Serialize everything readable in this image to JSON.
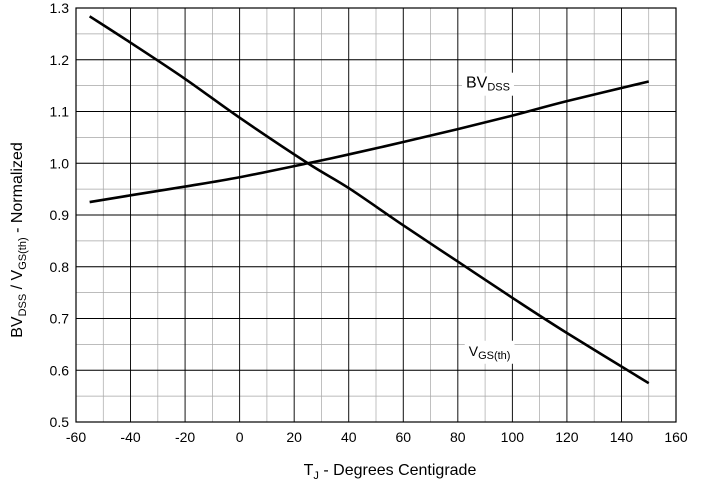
{
  "chart_data": {
    "type": "line",
    "title": "",
    "xlabel": {
      "main": "T",
      "sub": "J",
      "rest": " - Degrees Centigrade"
    },
    "ylabel": {
      "p1": "BV",
      "s1": "DSS",
      "p2": " / V",
      "s2": "GS(th)",
      "p3": " - Normalized"
    },
    "xlim": [
      -60,
      160
    ],
    "ylim": [
      0.5,
      1.3
    ],
    "x_ticks": [
      -60,
      -40,
      -20,
      0,
      20,
      40,
      60,
      80,
      100,
      120,
      140,
      160
    ],
    "y_ticks": [
      0.5,
      0.6,
      0.7,
      0.8,
      0.9,
      1.0,
      1.1,
      1.2,
      1.3
    ],
    "x_tick_labels": [
      "-60",
      "-40",
      "-20",
      "0",
      "20",
      "40",
      "60",
      "80",
      "100",
      "120",
      "140",
      "160"
    ],
    "y_tick_labels": [
      "0.5",
      "0.6",
      "0.7",
      "0.8",
      "0.9",
      "1.0",
      "1.1",
      "1.2",
      "1.3"
    ],
    "grid": true,
    "minor_grid": {
      "x_step": 10,
      "y_step": 0.05
    },
    "series": [
      {
        "name": "BVDSS",
        "label_main": "BV",
        "label_sub": "DSS",
        "x": [
          -55,
          -40,
          -20,
          0,
          25,
          40,
          60,
          80,
          100,
          120,
          150
        ],
        "y": [
          0.925,
          0.938,
          0.955,
          0.973,
          1.0,
          1.017,
          1.041,
          1.066,
          1.092,
          1.12,
          1.158
        ]
      },
      {
        "name": "VGS(th)",
        "label_main": "V",
        "label_sub": "GS(th)",
        "x": [
          -55,
          -40,
          -20,
          0,
          25,
          40,
          60,
          80,
          100,
          120,
          150
        ],
        "y": [
          1.284,
          1.233,
          1.163,
          1.088,
          1.0,
          0.952,
          0.88,
          0.81,
          0.74,
          0.672,
          0.575
        ]
      }
    ],
    "line_color": "#000000",
    "grid_color": "#a6a6a6"
  }
}
